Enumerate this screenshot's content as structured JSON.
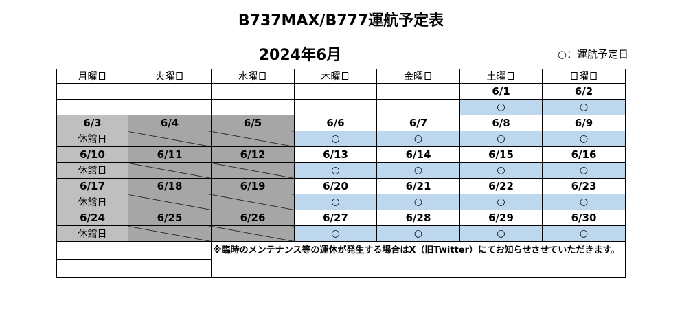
{
  "title": "B737MAX/B777運航予定表",
  "subtitle": "2024年6月",
  "legend": "○：運航予定日",
  "table": {
    "header": [
      "月曜日",
      "火曜日",
      "水曜日",
      "木曜日",
      "金曜日",
      "土曜日",
      "日曜日"
    ],
    "weeks": [
      {
        "dates": [
          null,
          null,
          null,
          null,
          null,
          "6/1",
          "6/2"
        ],
        "status": [
          null,
          null,
          null,
          null,
          null,
          "○",
          "○"
        ]
      },
      {
        "dates": [
          "6/3",
          "6/4",
          "6/5",
          "6/6",
          "6/7",
          "6/8",
          "6/9"
        ],
        "status": [
          "休館日",
          null,
          null,
          "○",
          "○",
          "○",
          "○"
        ]
      },
      {
        "dates": [
          "6/10",
          "6/11",
          "6/12",
          "6/13",
          "6/14",
          "6/15",
          "6/16"
        ],
        "status": [
          "休館日",
          null,
          null,
          "○",
          "○",
          "○",
          "○"
        ]
      },
      {
        "dates": [
          "6/17",
          "6/18",
          "6/19",
          "6/20",
          "6/21",
          "6/22",
          "6/23"
        ],
        "status": [
          "休館日",
          null,
          null,
          "○",
          "○",
          "○",
          "○"
        ]
      },
      {
        "dates": [
          "6/24",
          "6/25",
          "6/26",
          "6/27",
          "6/28",
          "6/29",
          "6/30"
        ],
        "status": [
          "休館日",
          null,
          null,
          "○",
          "○",
          "○",
          "○"
        ]
      }
    ],
    "note": "※臨時のメンテナンス等の運休が発生する場合はX（旧Twitter）にてお知らせさせていただきます。"
  }
}
